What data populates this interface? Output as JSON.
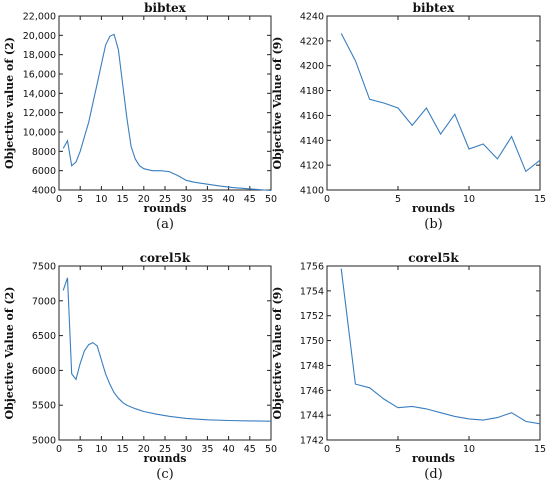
{
  "chart_data": [
    {
      "type": "line",
      "title": "bibtex",
      "xlabel": "rounds",
      "ylabel": "Objective value of (2)",
      "caption": "(a)",
      "xlim": [
        0,
        50
      ],
      "ylim": [
        4000,
        22000
      ],
      "xticks": [
        0,
        5,
        10,
        15,
        20,
        25,
        30,
        35,
        40,
        45,
        50
      ],
      "yticks": [
        4000,
        6000,
        8000,
        10000,
        12000,
        14000,
        16000,
        18000,
        20000,
        22000
      ],
      "ytick_labels": [
        "4000",
        "6000",
        "8000",
        "10,000",
        "12,000",
        "14,000",
        "16,000",
        "18,000",
        "20,000",
        "22,000"
      ],
      "series": [
        {
          "color": "#3a7ebf",
          "x": [
            1,
            2,
            3,
            4,
            5,
            6,
            7,
            8,
            9,
            10,
            11,
            12,
            13,
            14,
            15,
            16,
            17,
            18,
            19,
            20,
            22,
            24,
            26,
            28,
            30,
            32,
            35,
            38,
            41,
            44,
            47,
            50
          ],
          "y": [
            8300,
            9100,
            6500,
            6900,
            8000,
            9500,
            11000,
            13000,
            15000,
            17000,
            19000,
            19900,
            20100,
            18500,
            15000,
            11500,
            8500,
            7200,
            6500,
            6200,
            6000,
            6000,
            5900,
            5500,
            5000,
            4800,
            4600,
            4400,
            4250,
            4150,
            4050,
            3950
          ]
        }
      ]
    },
    {
      "type": "line",
      "title": "bibtex",
      "xlabel": "rounds",
      "ylabel": "Objective Value of (9)",
      "caption": "(b)",
      "xlim": [
        0,
        15
      ],
      "ylim": [
        4100,
        4240
      ],
      "xticks": [
        0,
        5,
        10,
        15
      ],
      "yticks": [
        4100,
        4120,
        4140,
        4160,
        4180,
        4200,
        4220,
        4240
      ],
      "ytick_labels": [
        "4100",
        "4120",
        "4140",
        "4160",
        "4180",
        "4200",
        "4220",
        "4240"
      ],
      "series": [
        {
          "color": "#3a7ebf",
          "x": [
            1,
            2,
            3,
            4,
            5,
            6,
            7,
            8,
            9,
            10,
            11,
            12,
            13,
            14,
            15
          ],
          "y": [
            4226,
            4204,
            4173,
            4170,
            4166,
            4152,
            4166,
            4145,
            4161,
            4133,
            4137,
            4125,
            4143,
            4115,
            4124
          ]
        }
      ]
    },
    {
      "type": "line",
      "title": "corel5k",
      "xlabel": "rounds",
      "ylabel": "Objective Value of (2)",
      "caption": "(c)",
      "xlim": [
        0,
        50
      ],
      "ylim": [
        5000,
        7500
      ],
      "xticks": [
        0,
        5,
        10,
        15,
        20,
        25,
        30,
        35,
        40,
        45,
        50
      ],
      "yticks": [
        5000,
        5500,
        6000,
        6500,
        7000,
        7500
      ],
      "ytick_labels": [
        "5000",
        "5500",
        "6000",
        "6500",
        "7000",
        "7500"
      ],
      "series": [
        {
          "color": "#3a7ebf",
          "x": [
            1,
            2,
            3,
            4,
            5,
            6,
            7,
            8,
            9,
            10,
            11,
            12,
            13,
            14,
            15,
            16,
            18,
            20,
            23,
            26,
            30,
            35,
            40,
            45,
            50
          ],
          "y": [
            7150,
            7330,
            5950,
            5870,
            6100,
            6280,
            6370,
            6400,
            6350,
            6150,
            5950,
            5800,
            5680,
            5600,
            5540,
            5500,
            5450,
            5410,
            5370,
            5340,
            5310,
            5290,
            5280,
            5275,
            5270
          ]
        }
      ]
    },
    {
      "type": "line",
      "title": "corel5k",
      "xlabel": "rounds",
      "ylabel": "Objective Value of (9)",
      "caption": "(d)",
      "xlim": [
        0,
        15
      ],
      "ylim": [
        1742,
        1756
      ],
      "xticks": [
        0,
        5,
        10,
        15
      ],
      "yticks": [
        1742,
        1744,
        1746,
        1748,
        1750,
        1752,
        1754,
        1756
      ],
      "ytick_labels": [
        "1742",
        "1744",
        "1746",
        "1748",
        "1750",
        "1752",
        "1754",
        "1756"
      ],
      "series": [
        {
          "color": "#3a7ebf",
          "x": [
            1,
            2,
            3,
            4,
            5,
            6,
            7,
            8,
            9,
            10,
            11,
            12,
            13,
            14,
            15
          ],
          "y": [
            1755.8,
            1746.5,
            1746.2,
            1745.3,
            1744.6,
            1744.7,
            1744.5,
            1744.2,
            1743.9,
            1743.7,
            1743.6,
            1743.8,
            1744.2,
            1743.5,
            1743.3
          ]
        }
      ]
    }
  ]
}
